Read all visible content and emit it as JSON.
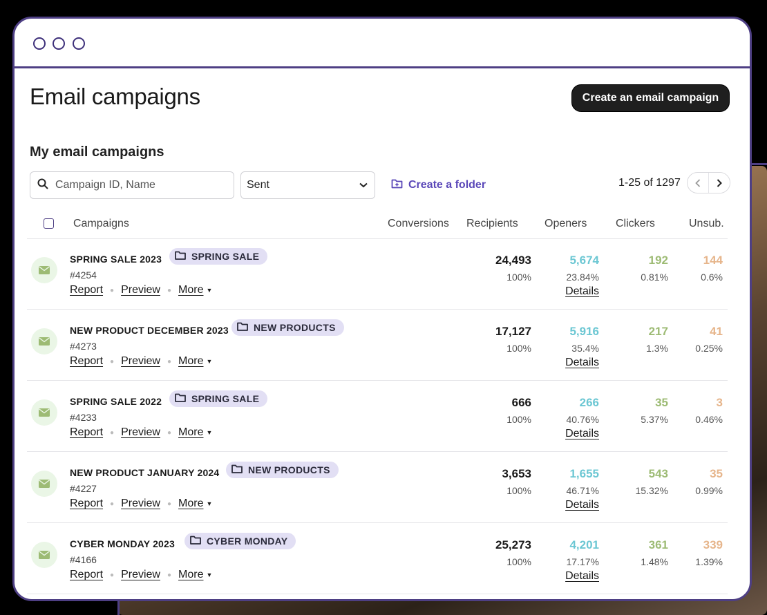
{
  "page_title": "Email campaigns",
  "create_button_label": "Create an email campaign",
  "section_title": "My email campaigns",
  "search": {
    "placeholder": "Campaign ID, Name",
    "value": ""
  },
  "status_filter": {
    "selected": "Sent"
  },
  "create_folder_label": "Create a folder",
  "pagination": {
    "label": "1-25 of 1297"
  },
  "columns": [
    "Campaigns",
    "Conversions",
    "Recipients",
    "Openers",
    "Clickers",
    "Unsub."
  ],
  "colors": {
    "accent": "#5a47b8",
    "openers": "#6cc7d3",
    "clickers": "#9dbb74",
    "unsub": "#e6b58b",
    "tag_bg": "#e2dff4",
    "window_border": "#4e3f84"
  },
  "action_labels": {
    "report": "Report",
    "preview": "Preview",
    "more": "More",
    "details": "Details"
  },
  "campaigns": [
    {
      "name": "SPRING SALE 2023",
      "folder": "SPRING SALE",
      "id": "#4254",
      "recipients": "24,493",
      "recipients_pct": "100%",
      "openers": "5,674",
      "openers_pct": "23.84%",
      "clickers": "192",
      "clickers_pct": "0.81%",
      "unsub": "144",
      "unsub_pct": "0.6%"
    },
    {
      "name": "NEW PRODUCT DECEMBER 2023",
      "folder": "NEW PRODUCTS",
      "id": "#4273",
      "recipients": "17,127",
      "recipients_pct": "100%",
      "openers": "5,916",
      "openers_pct": "35.4%",
      "clickers": "217",
      "clickers_pct": "1.3%",
      "unsub": "41",
      "unsub_pct": "0.25%"
    },
    {
      "name": "SPRING SALE 2022",
      "folder": "SPRING SALE",
      "id": "#4233",
      "recipients": "666",
      "recipients_pct": "100%",
      "openers": "266",
      "openers_pct": "40.76%",
      "clickers": "35",
      "clickers_pct": "5.37%",
      "unsub": "3",
      "unsub_pct": "0.46%"
    },
    {
      "name": "NEW PRODUCT JANUARY 2024",
      "folder": "NEW PRODUCTS",
      "id": "#4227",
      "recipients": "3,653",
      "recipients_pct": "100%",
      "openers": "1,655",
      "openers_pct": "46.71%",
      "clickers": "543",
      "clickers_pct": "15.32%",
      "unsub": "35",
      "unsub_pct": "0.99%"
    },
    {
      "name": "CYBER MONDAY 2023",
      "folder": "CYBER MONDAY",
      "id": "#4166",
      "recipients": "25,273",
      "recipients_pct": "100%",
      "openers": "4,201",
      "openers_pct": "17.17%",
      "clickers": "361",
      "clickers_pct": "1.48%",
      "unsub": "339",
      "unsub_pct": "1.39%"
    }
  ]
}
